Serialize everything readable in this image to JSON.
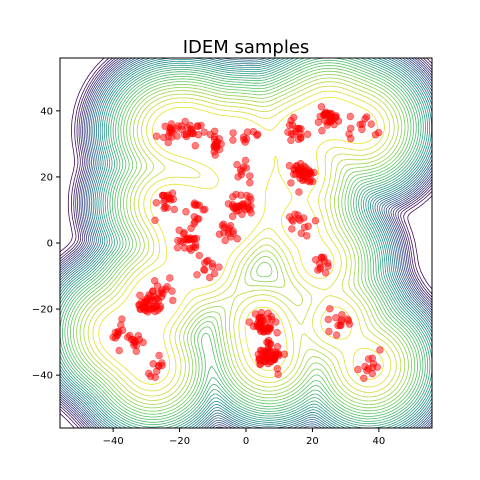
{
  "chart_data": {
    "type": "scatter",
    "title": "IDEM samples",
    "xlabel": "",
    "ylabel": "",
    "xlim": [
      -56,
      56
    ],
    "ylim": [
      -56,
      56
    ],
    "x_ticks": [
      -40,
      -20,
      0,
      20,
      40
    ],
    "y_ticks": [
      -40,
      -20,
      0,
      20,
      40
    ],
    "tick_labels_x": [
      "−40",
      "−20",
      "0",
      "20",
      "40"
    ],
    "tick_labels_y": [
      "−40",
      "−20",
      "0",
      "20",
      "40"
    ],
    "grid": false,
    "background": "contour",
    "point_color": "#ff0000",
    "contour_colormap": [
      "#440154",
      "#3b528b",
      "#21918c",
      "#5ec962",
      "#fde725"
    ],
    "clusters": [
      {
        "cx": -23,
        "cy": 34,
        "n": 16
      },
      {
        "cx": -16,
        "cy": 34,
        "n": 20
      },
      {
        "cx": -9,
        "cy": 30,
        "n": 18
      },
      {
        "cx": -1,
        "cy": 32,
        "n": 10
      },
      {
        "cx": 15,
        "cy": 34,
        "n": 18
      },
      {
        "cx": 25,
        "cy": 39,
        "n": 30
      },
      {
        "cx": 35,
        "cy": 35,
        "n": 12
      },
      {
        "cx": 0,
        "cy": 22,
        "n": 10
      },
      {
        "cx": 17,
        "cy": 21,
        "n": 45
      },
      {
        "cx": -24,
        "cy": 12,
        "n": 18
      },
      {
        "cx": -15,
        "cy": 10,
        "n": 14
      },
      {
        "cx": -1,
        "cy": 11,
        "n": 30
      },
      {
        "cx": -6,
        "cy": 4,
        "n": 14
      },
      {
        "cx": 16,
        "cy": 6,
        "n": 14
      },
      {
        "cx": -18,
        "cy": 0,
        "n": 24
      },
      {
        "cx": 22,
        "cy": -6,
        "n": 12
      },
      {
        "cx": -12,
        "cy": -8,
        "n": 12
      },
      {
        "cx": -25,
        "cy": -14,
        "n": 14
      },
      {
        "cx": -29,
        "cy": -19,
        "n": 40
      },
      {
        "cx": 27,
        "cy": -24,
        "n": 14
      },
      {
        "cx": 5,
        "cy": -24,
        "n": 40
      },
      {
        "cx": -39,
        "cy": -27,
        "n": 10
      },
      {
        "cx": -33,
        "cy": -30,
        "n": 14
      },
      {
        "cx": 7,
        "cy": -34,
        "n": 55
      },
      {
        "cx": -28,
        "cy": -38,
        "n": 10
      },
      {
        "cx": 37,
        "cy": -37,
        "n": 12
      }
    ]
  }
}
